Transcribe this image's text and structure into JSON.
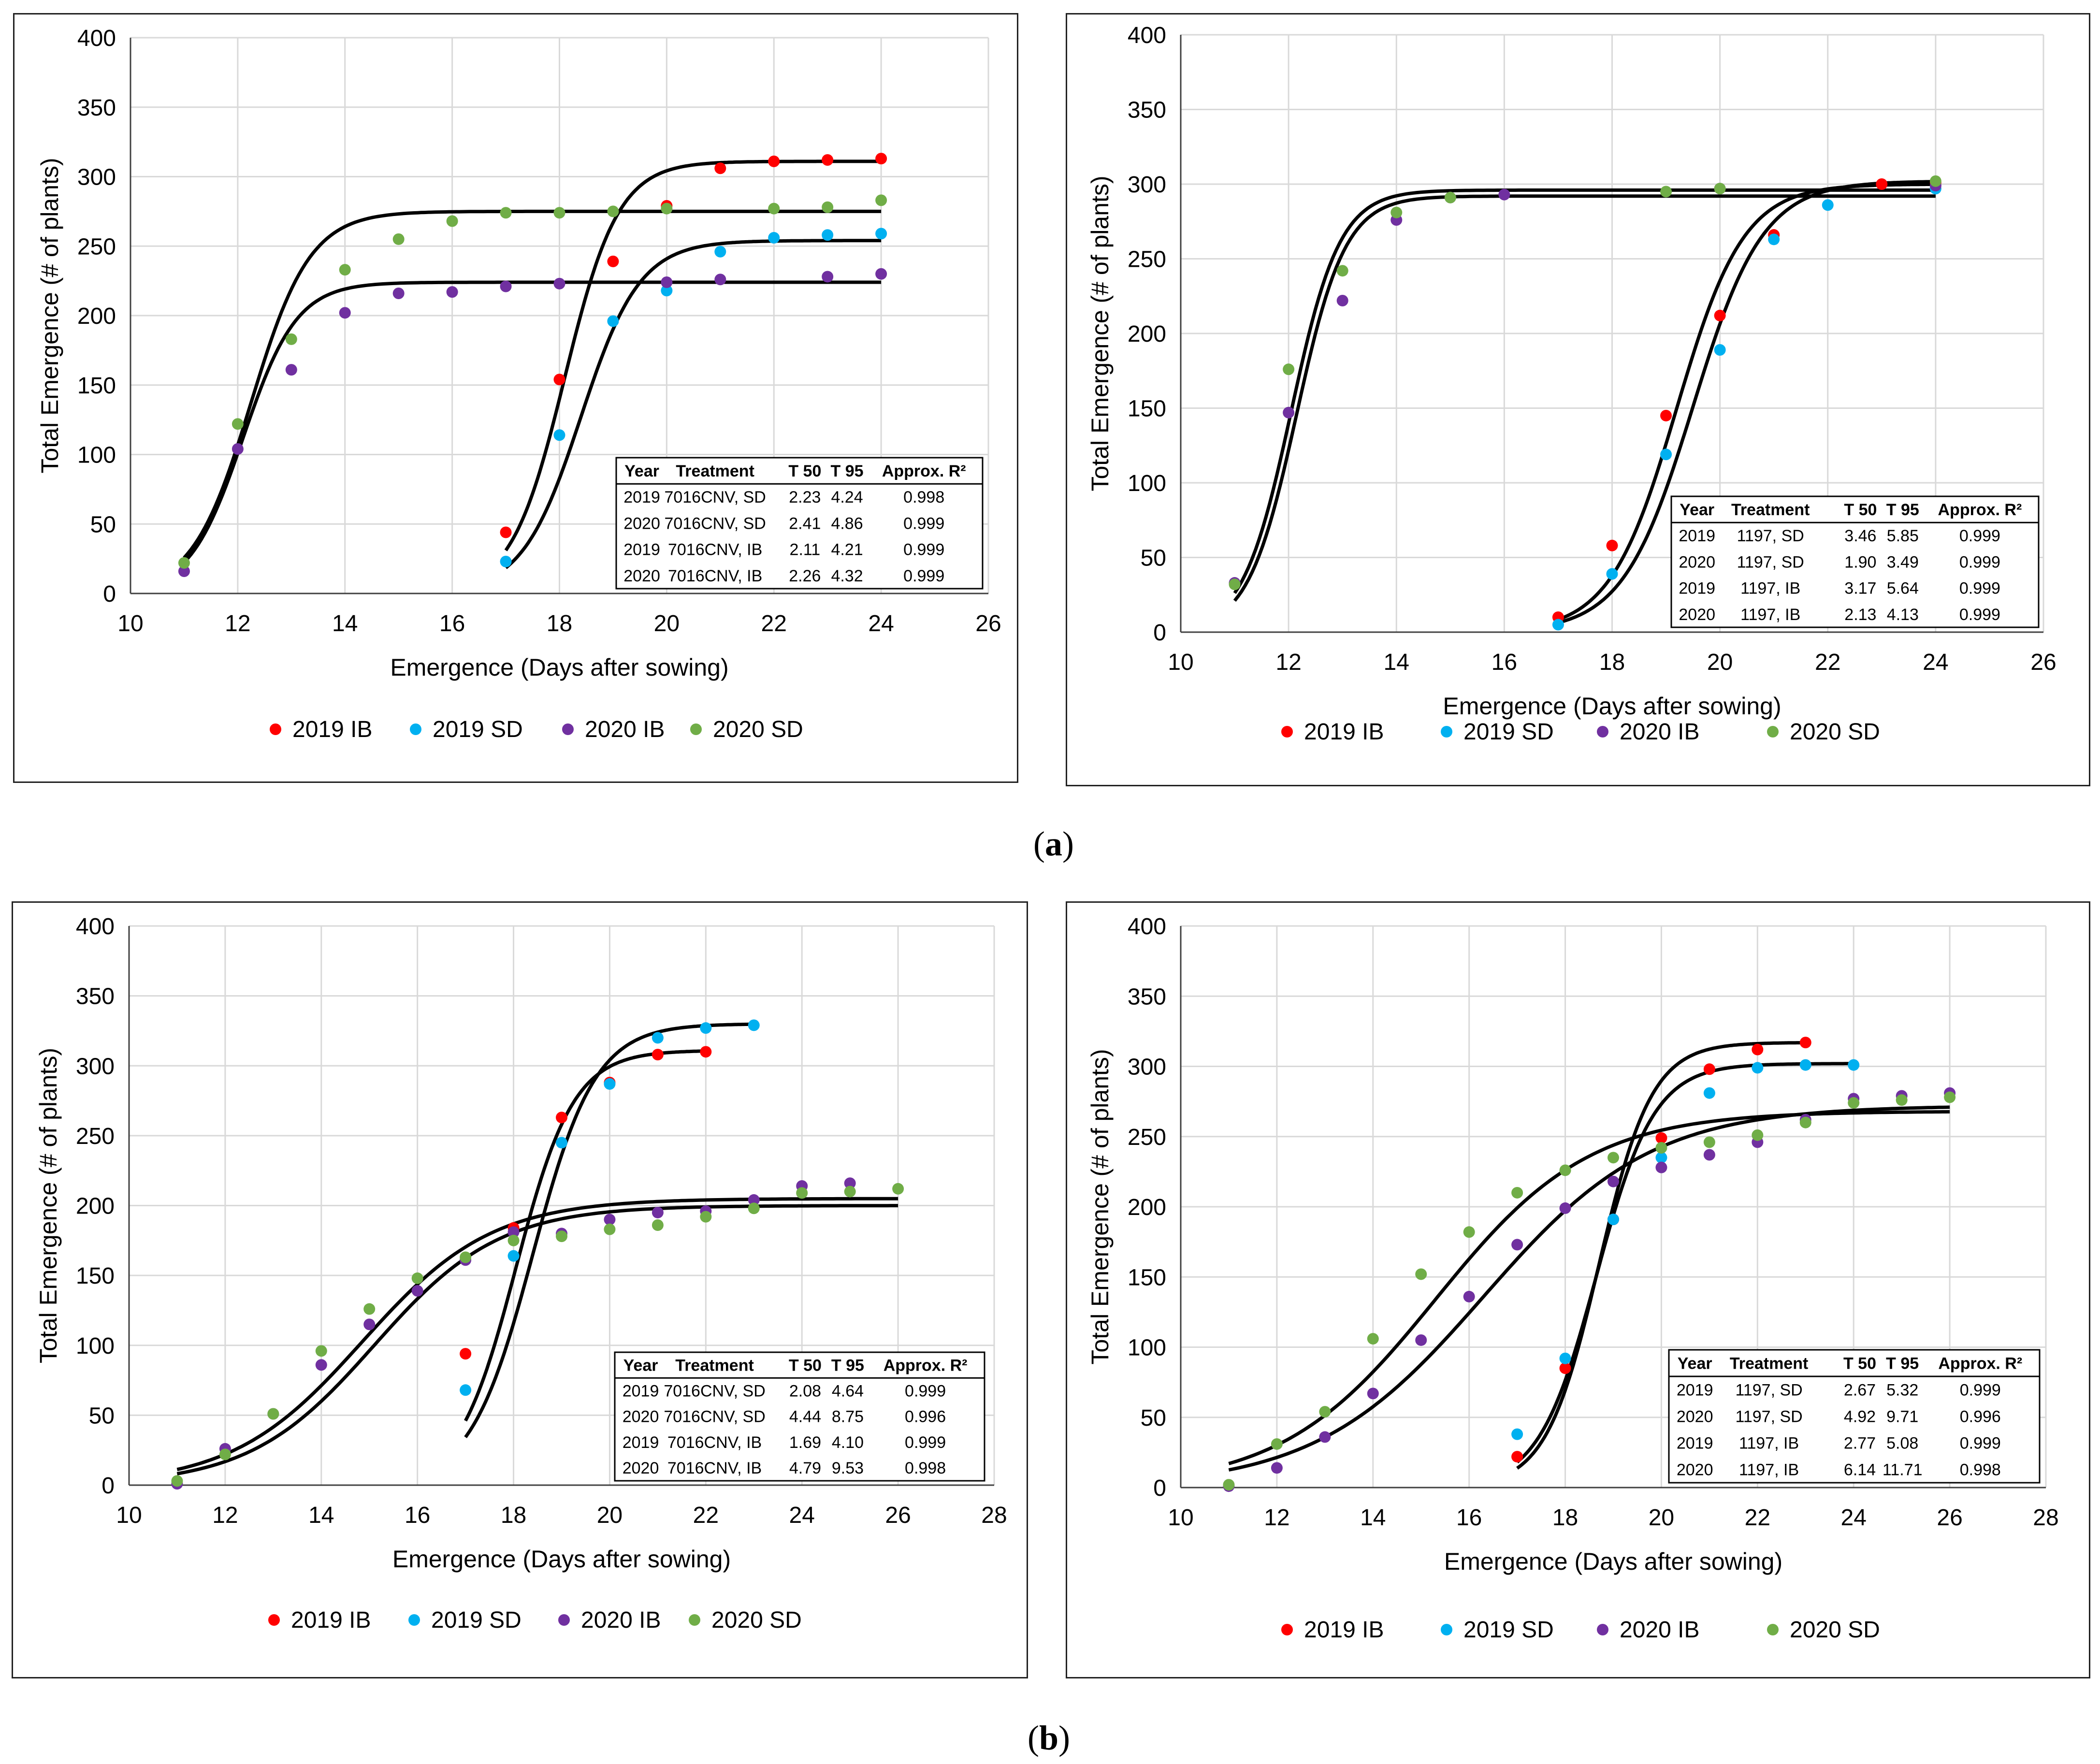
{
  "panel_labels": {
    "a": "a",
    "b": "b"
  },
  "chart_data": [
    {
      "type": "scatter",
      "title": "",
      "xlabel": "Emergence (Days after sowing)",
      "ylabel": "Total Emergence (# of plants)",
      "xlim": [
        10,
        26
      ],
      "ylim": [
        0,
        400
      ],
      "xticks": [
        10,
        12,
        14,
        16,
        18,
        20,
        22,
        24,
        26
      ],
      "yticks": [
        0,
        50,
        100,
        150,
        200,
        250,
        300,
        350,
        400
      ],
      "grid": true,
      "legend_position": "bottom",
      "series": [
        {
          "name": "2019 IB",
          "color": "#ff0000",
          "points": [
            [
              17,
              44
            ],
            [
              18,
              154
            ],
            [
              19,
              239
            ],
            [
              20,
              279
            ],
            [
              21,
              306
            ],
            [
              22,
              311
            ],
            [
              23,
              312
            ],
            [
              24,
              313
            ]
          ]
        },
        {
          "name": "2019 SD",
          "color": "#00b0f0",
          "points": [
            [
              17,
              23
            ],
            [
              18,
              114
            ],
            [
              19,
              196
            ],
            [
              20,
              218
            ],
            [
              21,
              246
            ],
            [
              22,
              256
            ],
            [
              23,
              258
            ],
            [
              24,
              259
            ]
          ]
        },
        {
          "name": "2020 IB",
          "color": "#7030a0",
          "points": [
            [
              11,
              16
            ],
            [
              12,
              104
            ],
            [
              13,
              161
            ],
            [
              14,
              202
            ],
            [
              15,
              216
            ],
            [
              16,
              217
            ],
            [
              17,
              221
            ],
            [
              18,
              223
            ],
            [
              20,
              224
            ],
            [
              21,
              226
            ],
            [
              23,
              228
            ],
            [
              24,
              230
            ]
          ]
        },
        {
          "name": "2020 SD",
          "color": "#70ad47",
          "points": [
            [
              11,
              22
            ],
            [
              12,
              122
            ],
            [
              13,
              183
            ],
            [
              14,
              233
            ],
            [
              15,
              255
            ],
            [
              16,
              268
            ],
            [
              17,
              274
            ],
            [
              18,
              274
            ],
            [
              19,
              275
            ],
            [
              20,
              277
            ],
            [
              22,
              277
            ],
            [
              23,
              278
            ],
            [
              24,
              283
            ]
          ]
        }
      ],
      "fits": [
        {
          "K": 311,
          "x0": 18.1,
          "s": 0.5,
          "xmin": 17,
          "xmax": 24
        },
        {
          "K": 254,
          "x0": 18.4,
          "s": 0.55,
          "xmin": 17,
          "xmax": 24
        },
        {
          "K": 224,
          "x0": 12.1,
          "s": 0.5,
          "xmin": 11,
          "xmax": 24
        },
        {
          "K": 275,
          "x0": 12.25,
          "s": 0.55,
          "xmin": 11,
          "xmax": 24
        }
      ],
      "table": {
        "headers": [
          "Year",
          "Treatment",
          "T 50",
          "T 95",
          "Approx. R²"
        ],
        "rows": [
          [
            "2019",
            "7016CNV, SD",
            "2.23",
            "4.24",
            "0.998"
          ],
          [
            "2020",
            "7016CNV, SD",
            "2.41",
            "4.86",
            "0.999"
          ],
          [
            "2019",
            "7016CNV, IB",
            "2.11",
            "4.21",
            "0.999"
          ],
          [
            "2020",
            "7016CNV, IB",
            "2.26",
            "4.32",
            "0.999"
          ]
        ]
      }
    },
    {
      "type": "scatter",
      "title": "",
      "xlabel": "Emergence (Days after sowing)",
      "ylabel": "Total Emergence (# of plants)",
      "xlim": [
        10,
        26
      ],
      "ylim": [
        0,
        400
      ],
      "xticks": [
        10,
        12,
        14,
        16,
        18,
        20,
        22,
        24,
        26
      ],
      "yticks": [
        0,
        50,
        100,
        150,
        200,
        250,
        300,
        350,
        400
      ],
      "grid": true,
      "legend_position": "bottom",
      "series": [
        {
          "name": "2019 IB",
          "color": "#ff0000",
          "points": [
            [
              17,
              10
            ],
            [
              18,
              58
            ],
            [
              19,
              145
            ],
            [
              20,
              212
            ],
            [
              21,
              266
            ],
            [
              23,
              300
            ],
            [
              24,
              301
            ]
          ]
        },
        {
          "name": "2019 SD",
          "color": "#00b0f0",
          "points": [
            [
              17,
              5
            ],
            [
              18,
              39
            ],
            [
              19,
              119
            ],
            [
              20,
              189
            ],
            [
              21,
              263
            ],
            [
              22,
              286
            ],
            [
              24,
              297
            ]
          ]
        },
        {
          "name": "2020 IB",
          "color": "#7030a0",
          "points": [
            [
              11,
              33
            ],
            [
              12,
              147
            ],
            [
              13,
              222
            ],
            [
              14,
              276
            ],
            [
              15,
              291
            ],
            [
              16,
              293
            ],
            [
              20,
              297
            ],
            [
              24,
              299
            ]
          ]
        },
        {
          "name": "2020 SD",
          "color": "#70ad47",
          "points": [
            [
              11,
              32
            ],
            [
              12,
              176
            ],
            [
              13,
              242
            ],
            [
              14,
              281
            ],
            [
              15,
              291
            ],
            [
              19,
              295
            ],
            [
              20,
              297
            ],
            [
              24,
              302
            ]
          ]
        }
      ],
      "fits": [
        {
          "K": 300,
          "x0": 19.2,
          "s": 0.62,
          "xmin": 17,
          "xmax": 24
        },
        {
          "K": 302,
          "x0": 19.5,
          "s": 0.65,
          "xmin": 17,
          "xmax": 24
        },
        {
          "K": 292,
          "x0": 12.15,
          "s": 0.45,
          "xmin": 11,
          "xmax": 24
        },
        {
          "K": 296,
          "x0": 12.05,
          "s": 0.45,
          "xmin": 11,
          "xmax": 24
        }
      ],
      "table": {
        "headers": [
          "Year",
          "Treatment",
          "T 50",
          "T 95",
          "Approx. R²"
        ],
        "rows": [
          [
            "2019",
            "1197, SD",
            "3.46",
            "5.85",
            "0.999"
          ],
          [
            "2020",
            "1197, SD",
            "1.90",
            "3.49",
            "0.999"
          ],
          [
            "2019",
            "1197, IB",
            "3.17",
            "5.64",
            "0.999"
          ],
          [
            "2020",
            "1197, IB",
            "2.13",
            "4.13",
            "0.999"
          ]
        ]
      }
    },
    {
      "type": "scatter",
      "title": "",
      "xlabel": "Emergence (Days after sowing)",
      "ylabel": "Total Emergence (# of plants)",
      "xlim": [
        10,
        28
      ],
      "ylim": [
        0,
        400
      ],
      "xticks": [
        10,
        12,
        14,
        16,
        18,
        20,
        22,
        24,
        26,
        28
      ],
      "yticks": [
        0,
        50,
        100,
        150,
        200,
        250,
        300,
        350,
        400
      ],
      "grid": true,
      "legend_position": "bottom",
      "series": [
        {
          "name": "2019 IB",
          "color": "#ff0000",
          "points": [
            [
              17,
              94
            ],
            [
              18,
              184
            ],
            [
              19,
              263
            ],
            [
              20,
              288
            ],
            [
              21,
              308
            ],
            [
              22,
              310
            ]
          ]
        },
        {
          "name": "2019 SD",
          "color": "#00b0f0",
          "points": [
            [
              17,
              68
            ],
            [
              18,
              164
            ],
            [
              19,
              245
            ],
            [
              20,
              287
            ],
            [
              21,
              320
            ],
            [
              22,
              327
            ],
            [
              23,
              329
            ]
          ]
        },
        {
          "name": "2020 IB",
          "color": "#7030a0",
          "points": [
            [
              11,
              1
            ],
            [
              12,
              26
            ],
            [
              13,
              51
            ],
            [
              14,
              86
            ],
            [
              15,
              115
            ],
            [
              16,
              139
            ],
            [
              17,
              161
            ],
            [
              18,
              181
            ],
            [
              19,
              180
            ],
            [
              20,
              190
            ],
            [
              21,
              195
            ],
            [
              22,
              196
            ],
            [
              23,
              204
            ],
            [
              24,
              214
            ],
            [
              25,
              216
            ]
          ]
        },
        {
          "name": "2020 SD",
          "color": "#70ad47",
          "points": [
            [
              11,
              3
            ],
            [
              12,
              22
            ],
            [
              13,
              51
            ],
            [
              14,
              96
            ],
            [
              15,
              126
            ],
            [
              16,
              148
            ],
            [
              17,
              163
            ],
            [
              18,
              175
            ],
            [
              19,
              178
            ],
            [
              20,
              183
            ],
            [
              21,
              186
            ],
            [
              22,
              192
            ],
            [
              23,
              198
            ],
            [
              24,
              209
            ],
            [
              25,
              210
            ],
            [
              26,
              212
            ]
          ]
        }
      ],
      "fits": [
        {
          "K": 311,
          "x0": 18.05,
          "s": 0.6,
          "xmin": 17,
          "xmax": 22
        },
        {
          "K": 330,
          "x0": 18.4,
          "s": 0.65,
          "xmin": 17,
          "xmax": 23
        },
        {
          "K": 200,
          "x0": 15.1,
          "s": 1.3,
          "xmin": 11,
          "xmax": 26
        },
        {
          "K": 205,
          "x0": 14.85,
          "s": 1.35,
          "xmin": 11,
          "xmax": 26
        }
      ],
      "table": {
        "headers": [
          "Year",
          "Treatment",
          "T 50",
          "T 95",
          "Approx. R²"
        ],
        "rows": [
          [
            "2019",
            "7016CNV, SD",
            "2.08",
            "4.64",
            "0.999"
          ],
          [
            "2020",
            "7016CNV, SD",
            "4.44",
            "8.75",
            "0.996"
          ],
          [
            "2019",
            "7016CNV, IB",
            "1.69",
            "4.10",
            "0.999"
          ],
          [
            "2020",
            "7016CNV, IB",
            "4.79",
            "9.53",
            "0.998"
          ]
        ]
      }
    },
    {
      "type": "scatter",
      "title": "",
      "xlabel": "Emergence (Days after sowing)",
      "ylabel": "Total Emergence (# of plants)",
      "xlim": [
        10,
        28
      ],
      "ylim": [
        0,
        400
      ],
      "xticks": [
        10,
        12,
        14,
        16,
        18,
        20,
        22,
        24,
        26,
        28
      ],
      "yticks": [
        0,
        50,
        100,
        150,
        200,
        250,
        300,
        350,
        400
      ],
      "grid": true,
      "legend_position": "bottom",
      "series": [
        {
          "name": "2019 IB",
          "color": "#ff0000",
          "points": [
            [
              17,
              22
            ],
            [
              18,
              85
            ],
            [
              19,
              191
            ],
            [
              20,
              249
            ],
            [
              21,
              298
            ],
            [
              22,
              312
            ],
            [
              23,
              317
            ]
          ]
        },
        {
          "name": "2019 SD",
          "color": "#00b0f0",
          "points": [
            [
              17,
              38
            ],
            [
              18,
              92
            ],
            [
              19,
              191
            ],
            [
              20,
              235
            ],
            [
              21,
              281
            ],
            [
              22,
              299
            ],
            [
              23,
              301
            ],
            [
              24,
              301
            ]
          ]
        },
        {
          "name": "2020 IB",
          "color": "#7030a0",
          "points": [
            [
              11,
              1
            ],
            [
              12,
              14
            ],
            [
              13,
              36
            ],
            [
              14,
              67
            ],
            [
              15,
              105
            ],
            [
              16,
              136
            ],
            [
              17,
              173
            ],
            [
              18,
              199
            ],
            [
              19,
              218
            ],
            [
              20,
              228
            ],
            [
              21,
              237
            ],
            [
              22,
              246
            ],
            [
              23,
              262
            ],
            [
              24,
              277
            ],
            [
              25,
              279
            ],
            [
              26,
              281
            ]
          ]
        },
        {
          "name": "2020 SD",
          "color": "#70ad47",
          "points": [
            [
              11,
              2
            ],
            [
              12,
              31
            ],
            [
              13,
              54
            ],
            [
              14,
              106
            ],
            [
              15,
              152
            ],
            [
              16,
              182
            ],
            [
              17,
              210
            ],
            [
              18,
              226
            ],
            [
              19,
              235
            ],
            [
              20,
              242
            ],
            [
              21,
              246
            ],
            [
              22,
              251
            ],
            [
              23,
              260
            ],
            [
              24,
              274
            ],
            [
              25,
              276
            ],
            [
              26,
              278
            ]
          ]
        }
      ],
      "fits": [
        {
          "K": 317,
          "x0": 18.7,
          "s": 0.55,
          "xmin": 17,
          "xmax": 23
        },
        {
          "K": 302,
          "x0": 18.65,
          "s": 0.6,
          "xmin": 17,
          "xmax": 24
        },
        {
          "K": 272,
          "x0": 16.3,
          "s": 1.75,
          "xmin": 11,
          "xmax": 26
        },
        {
          "K": 268,
          "x0": 15.3,
          "s": 1.6,
          "xmin": 11,
          "xmax": 26
        }
      ],
      "table": {
        "headers": [
          "Year",
          "Treatment",
          "T 50",
          "T 95",
          "Approx. R²"
        ],
        "rows": [
          [
            "2019",
            "1197, SD",
            "2.67",
            "5.32",
            "0.999"
          ],
          [
            "2020",
            "1197, SD",
            "4.92",
            "9.71",
            "0.996"
          ],
          [
            "2019",
            "1197, IB",
            "2.77",
            "5.08",
            "0.999"
          ],
          [
            "2020",
            "1197, IB",
            "6.14",
            "11.71",
            "0.998"
          ]
        ]
      }
    }
  ]
}
